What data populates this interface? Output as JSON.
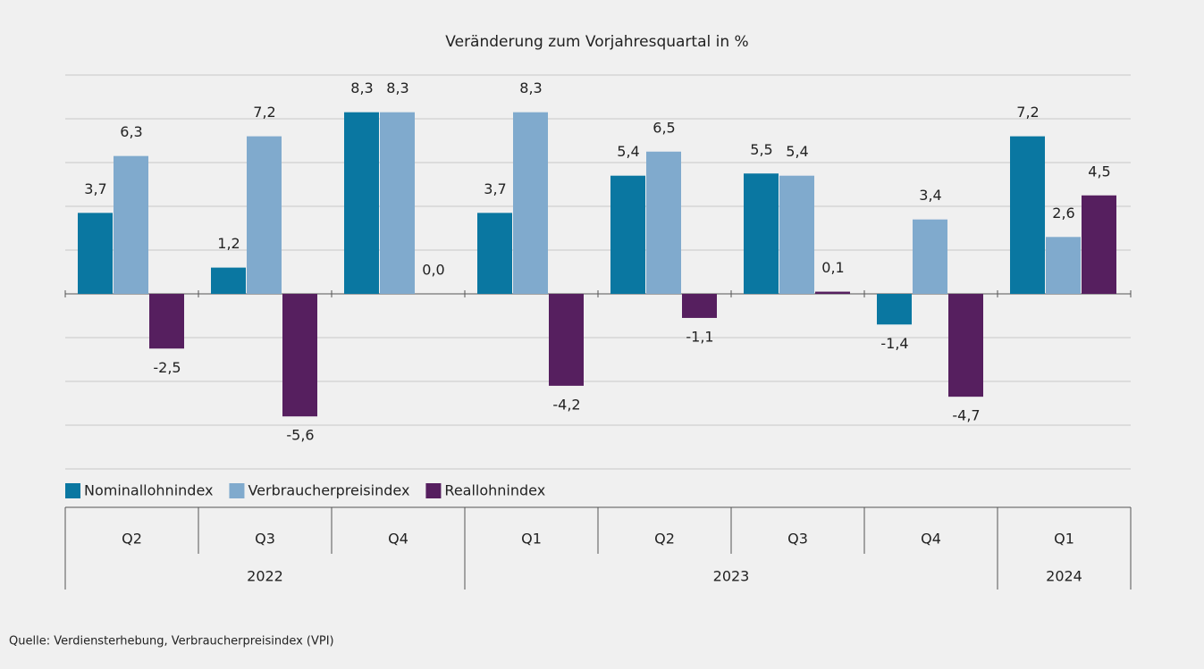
{
  "chart_data": {
    "type": "bar",
    "title": "Veränderung zum Vorjahresquartal in %",
    "groups": [
      {
        "name": "2022",
        "categories": [
          "Q2",
          "Q3",
          "Q4"
        ]
      },
      {
        "name": "2023",
        "categories": [
          "Q1",
          "Q2",
          "Q3",
          "Q4"
        ]
      },
      {
        "name": "2024",
        "categories": [
          "Q1"
        ]
      }
    ],
    "series": [
      {
        "name": "Nominallohnindex",
        "color": "#0a77a1",
        "values": [
          3.7,
          1.2,
          8.3,
          3.7,
          5.4,
          5.5,
          -1.4,
          7.2
        ],
        "value_labels": [
          "3,7",
          "1,2",
          "8,3",
          "3,7",
          "5,4",
          "5,5",
          "-1,4",
          "7,2"
        ]
      },
      {
        "name": "Verbraucherpreisindex",
        "color": "#80aacd",
        "values": [
          6.3,
          7.2,
          8.3,
          8.3,
          6.5,
          5.4,
          3.4,
          2.6
        ],
        "value_labels": [
          "6,3",
          "7,2",
          "8,3",
          "8,3",
          "6,5",
          "5,4",
          "3,4",
          "2,6"
        ]
      },
      {
        "name": "Reallohnindex",
        "color": "#561f5f",
        "values": [
          -2.5,
          -5.6,
          0.0,
          -4.2,
          -1.1,
          0.1,
          -4.7,
          4.5
        ],
        "value_labels": [
          "-2,5",
          "-5,6",
          "0,0",
          "-4,2",
          "-1,1",
          "0,1",
          "-4,7",
          "4,5"
        ]
      }
    ],
    "ylim": [
      -8,
      10
    ],
    "yticks": [
      -8,
      -6,
      -4,
      -2,
      0,
      2,
      4,
      6,
      8,
      10
    ],
    "grid": true,
    "legend": "bottom",
    "source": "Quelle: Verdiensterhebung, Verbraucherpreisindex (VPI)"
  }
}
